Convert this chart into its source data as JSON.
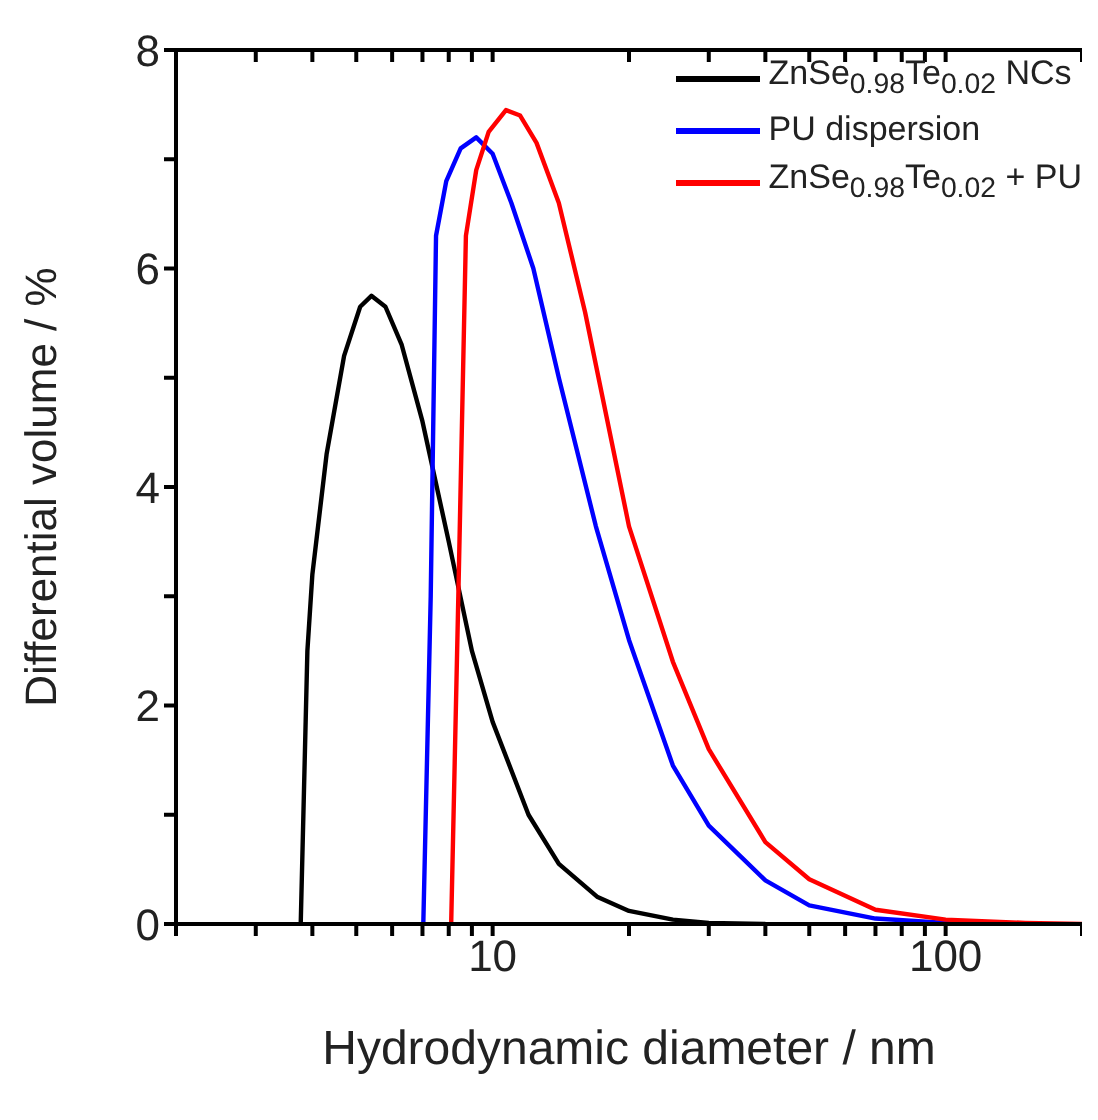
{
  "chart_data": {
    "type": "line",
    "xlabel": "Hydrodynamic diameter / nm",
    "ylabel": "Differential volume / %",
    "log": "x",
    "xlim": [
      2,
      200
    ],
    "ylim": [
      0,
      8
    ],
    "xticks": [
      {
        "value": 2,
        "label": null
      },
      {
        "value": 3,
        "label": null
      },
      {
        "value": 4,
        "label": null
      },
      {
        "value": 5,
        "label": null
      },
      {
        "value": 6,
        "label": null
      },
      {
        "value": 7,
        "label": null
      },
      {
        "value": 8,
        "label": null
      },
      {
        "value": 9,
        "label": null
      },
      10,
      {
        "value": 20,
        "label": null
      },
      {
        "value": 30,
        "label": null
      },
      {
        "value": 40,
        "label": null
      },
      {
        "value": 50,
        "label": null
      },
      {
        "value": 60,
        "label": null
      },
      {
        "value": 70,
        "label": null
      },
      {
        "value": 80,
        "label": null
      },
      {
        "value": 90,
        "label": null
      },
      100,
      {
        "value": 200,
        "label": null
      }
    ],
    "yticks": [
      0,
      {
        "value": 1,
        "label": null
      },
      2,
      {
        "value": 3,
        "label": null
      },
      4,
      {
        "value": 5,
        "label": null
      },
      6,
      {
        "value": 7,
        "label": null
      },
      8
    ],
    "grid": false,
    "legend": "top right",
    "marker": "none",
    "line_style": "solid",
    "series": [
      {
        "name": "ZnSe$_{0.98}$Te$_{0.02}$ NCs",
        "color": "#000000",
        "x": [
          3.77,
          3.9,
          4.0,
          4.3,
          4.7,
          5.1,
          5.4,
          5.8,
          6.3,
          7,
          8,
          9,
          10,
          12,
          14,
          17,
          20,
          25,
          30,
          40
        ],
        "values": [
          0,
          2.5,
          3.2,
          4.3,
          5.2,
          5.65,
          5.75,
          5.65,
          5.3,
          4.6,
          3.5,
          2.5,
          1.85,
          1.0,
          0.55,
          0.25,
          0.12,
          0.04,
          0.01,
          0
        ]
      },
      {
        "name": "PU dispersion",
        "color": "#0000ff",
        "x": [
          7.03,
          7.3,
          7.5,
          7.9,
          8.5,
          9.2,
          10,
          11,
          12.3,
          14,
          16.9,
          20,
          25,
          30,
          40,
          50,
          70,
          100,
          150
        ],
        "values": [
          0,
          3,
          6.3,
          6.8,
          7.1,
          7.2,
          7.05,
          6.6,
          6.0,
          5.0,
          3.64,
          2.6,
          1.45,
          0.9,
          0.4,
          0.17,
          0.05,
          0.01,
          0
        ]
      },
      {
        "name": "ZnSe$_{0.98}$Te$_{0.02}$ + PU",
        "color": "#ff0000",
        "x": [
          8.1,
          8.4,
          8.73,
          9.2,
          9.8,
          10.7,
          11.5,
          12.5,
          14,
          16,
          20,
          25,
          30,
          40,
          50,
          70,
          100,
          150,
          200
        ],
        "values": [
          0,
          3,
          6.3,
          6.9,
          7.25,
          7.45,
          7.4,
          7.15,
          6.6,
          5.6,
          3.64,
          2.4,
          1.6,
          0.75,
          0.41,
          0.13,
          0.04,
          0.01,
          0
        ]
      }
    ]
  }
}
